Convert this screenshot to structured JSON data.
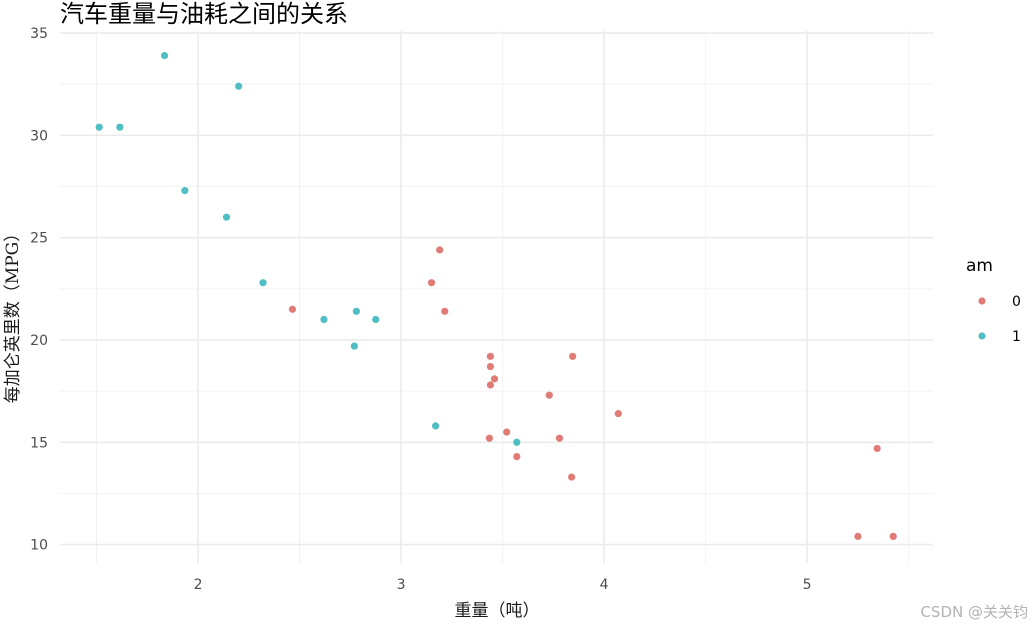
{
  "chart_data": {
    "type": "scatter",
    "title": "汽车重量与油耗之间的关系",
    "xlabel": "重量（吨）",
    "ylabel": "每加仑英里数（MPG）",
    "xlim": [
      1.32,
      5.62
    ],
    "ylim": [
      9.1,
      35.1
    ],
    "x_ticks": [
      2,
      3,
      4,
      5
    ],
    "y_ticks": [
      10,
      15,
      20,
      25,
      30,
      35
    ],
    "x_minor": [
      1.5,
      2.5,
      3.5,
      4.5,
      5.5
    ],
    "y_minor": [
      12.5,
      17.5,
      22.5,
      27.5,
      32.5
    ],
    "grid": true,
    "legend": {
      "title": "am",
      "position": "right"
    },
    "series": [
      {
        "name": "0",
        "color": "#e07b76",
        "points": [
          {
            "x": 3.215,
            "y": 21.4
          },
          {
            "x": 3.44,
            "y": 18.7
          },
          {
            "x": 3.46,
            "y": 18.1
          },
          {
            "x": 3.57,
            "y": 14.3
          },
          {
            "x": 3.19,
            "y": 24.4
          },
          {
            "x": 3.15,
            "y": 22.8
          },
          {
            "x": 3.44,
            "y": 19.2
          },
          {
            "x": 3.44,
            "y": 17.8
          },
          {
            "x": 4.07,
            "y": 16.4
          },
          {
            "x": 3.73,
            "y": 17.3
          },
          {
            "x": 3.78,
            "y": 15.2
          },
          {
            "x": 5.25,
            "y": 10.4
          },
          {
            "x": 5.424,
            "y": 10.4
          },
          {
            "x": 5.345,
            "y": 14.7
          },
          {
            "x": 2.465,
            "y": 21.5
          },
          {
            "x": 3.52,
            "y": 15.5
          },
          {
            "x": 3.435,
            "y": 15.2
          },
          {
            "x": 3.84,
            "y": 13.3
          },
          {
            "x": 3.845,
            "y": 19.2
          }
        ]
      },
      {
        "name": "1",
        "color": "#4fbfc4",
        "points": [
          {
            "x": 2.62,
            "y": 21.0
          },
          {
            "x": 2.875,
            "y": 21.0
          },
          {
            "x": 2.32,
            "y": 22.8
          },
          {
            "x": 2.2,
            "y": 32.4
          },
          {
            "x": 1.615,
            "y": 30.4
          },
          {
            "x": 1.835,
            "y": 33.9
          },
          {
            "x": 1.935,
            "y": 27.3
          },
          {
            "x": 2.14,
            "y": 26.0
          },
          {
            "x": 1.513,
            "y": 30.4
          },
          {
            "x": 3.17,
            "y": 15.8
          },
          {
            "x": 2.77,
            "y": 19.7
          },
          {
            "x": 3.57,
            "y": 15.0
          },
          {
            "x": 2.78,
            "y": 21.4
          }
        ]
      }
    ]
  },
  "watermark": "CSDN @关关钧"
}
